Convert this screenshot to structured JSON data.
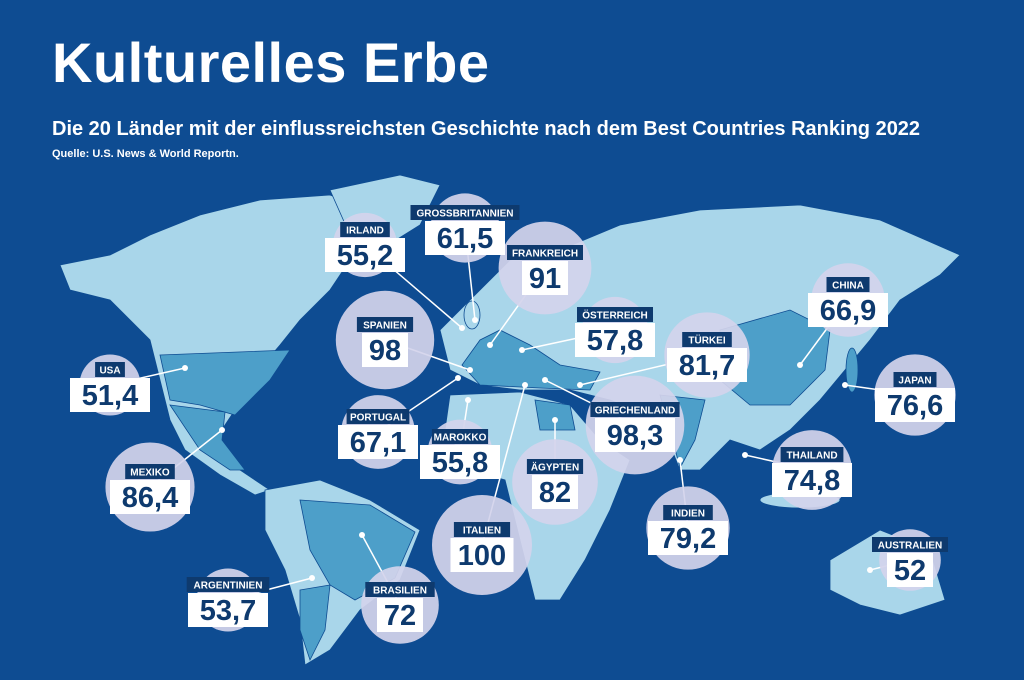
{
  "header": {
    "title": "Kulturelles Erbe",
    "subtitle": "Die 20 Länder mit der einflussreichsten Geschichte nach dem Best Countries Ranking 2022",
    "source": "Quelle: U.S. News & World Reportn."
  },
  "countries": [
    {
      "name": "USA",
      "value": 51.4,
      "value_label": "51,4"
    },
    {
      "name": "IRLAND",
      "value": 55.2,
      "value_label": "55,2"
    },
    {
      "name": "GROSSBRITANNIEN",
      "value": 61.5,
      "value_label": "61,5"
    },
    {
      "name": "FRANKREICH",
      "value": 91,
      "value_label": "91"
    },
    {
      "name": "SPANIEN",
      "value": 98,
      "value_label": "98"
    },
    {
      "name": "PORTUGAL",
      "value": 67.1,
      "value_label": "67,1"
    },
    {
      "name": "MAROKKO",
      "value": 55.8,
      "value_label": "55,8"
    },
    {
      "name": "ÖSTERREICH",
      "value": 57.8,
      "value_label": "57,8"
    },
    {
      "name": "TÜRKEI",
      "value": 81.7,
      "value_label": "81,7"
    },
    {
      "name": "GRIECHENLAND",
      "value": 98.3,
      "value_label": "98,3"
    },
    {
      "name": "ÄGYPTEN",
      "value": 82,
      "value_label": "82"
    },
    {
      "name": "ITALIEN",
      "value": 100,
      "value_label": "100"
    },
    {
      "name": "CHINA",
      "value": 66.9,
      "value_label": "66,9"
    },
    {
      "name": "JAPAN",
      "value": 76.6,
      "value_label": "76,6"
    },
    {
      "name": "THAILAND",
      "value": 74.8,
      "value_label": "74,8"
    },
    {
      "name": "INDIEN",
      "value": 79.2,
      "value_label": "79,2"
    },
    {
      "name": "AUSTRALIEN",
      "value": 52,
      "value_label": "52"
    },
    {
      "name": "MEXIKO",
      "value": 86.4,
      "value_label": "86,4"
    },
    {
      "name": "ARGENTINIEN",
      "value": 53.7,
      "value_label": "53,7"
    },
    {
      "name": "BRASILIEN",
      "value": 72,
      "value_label": "72"
    }
  ]
}
